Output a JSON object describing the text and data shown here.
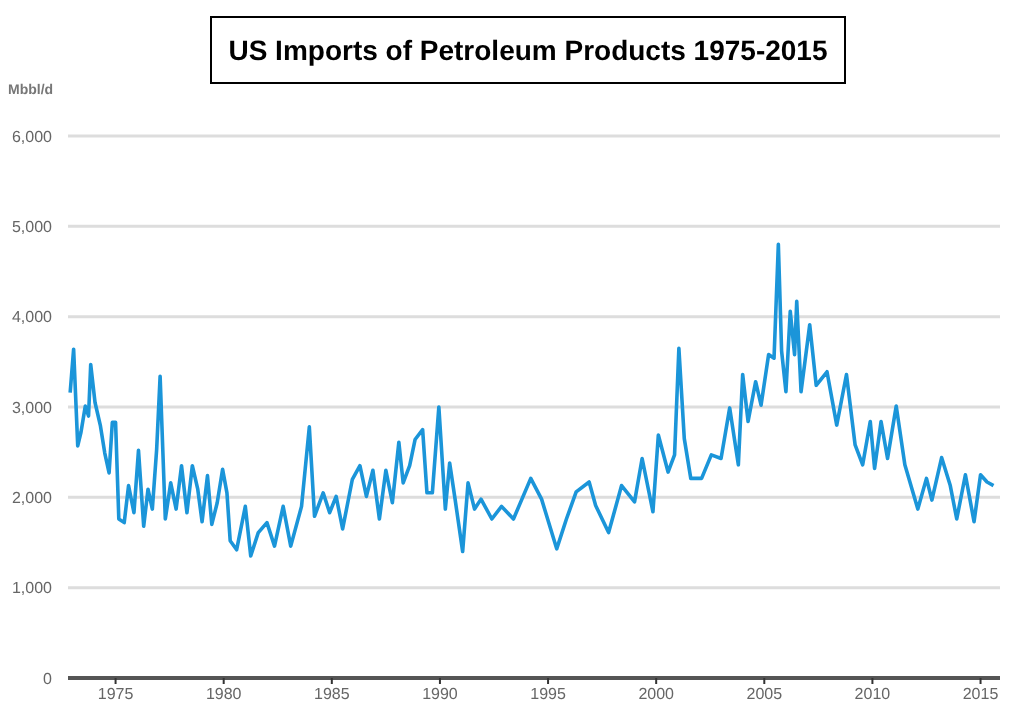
{
  "chart_data": {
    "type": "line",
    "title": "US Imports of Petroleum Products 1975-2015",
    "ylabel": "Mbbl/d",
    "xlim": [
      1972.8,
      2015.9
    ],
    "xticks": [
      1975,
      1980,
      1985,
      1990,
      1995,
      2000,
      2005,
      2010,
      2015
    ],
    "ylim": [
      0,
      6000
    ],
    "yticks": [
      {
        "value": 0,
        "label": "0"
      },
      {
        "value": 1000,
        "label": "1,000"
      },
      {
        "value": 2000,
        "label": "2,000"
      },
      {
        "value": 3000,
        "label": "3,000"
      },
      {
        "value": 4000,
        "label": "4,000"
      },
      {
        "value": 5000,
        "label": "5,000"
      },
      {
        "value": 6000,
        "label": "6,000"
      }
    ],
    "grid": "y",
    "x": [
      1972.9,
      1973.06,
      1973.25,
      1973.4,
      1973.6,
      1973.75,
      1973.85,
      1974.05,
      1974.3,
      1974.5,
      1974.7,
      1974.85,
      1975.0,
      1975.15,
      1975.4,
      1975.6,
      1975.85,
      1976.06,
      1976.3,
      1976.5,
      1976.7,
      1976.9,
      1977.06,
      1977.3,
      1977.55,
      1977.8,
      1978.05,
      1978.3,
      1978.55,
      1978.8,
      1979.0,
      1979.25,
      1979.45,
      1979.7,
      1979.95,
      1980.15,
      1980.3,
      1980.6,
      1981.0,
      1981.25,
      1981.6,
      1982.0,
      1982.35,
      1982.75,
      1983.1,
      1983.6,
      1983.96,
      1984.2,
      1984.6,
      1984.9,
      1985.2,
      1985.5,
      1985.95,
      1986.3,
      1986.6,
      1986.9,
      1987.2,
      1987.5,
      1987.8,
      1988.1,
      1988.3,
      1988.6,
      1988.85,
      1989.2,
      1989.4,
      1989.65,
      1989.95,
      1990.25,
      1990.45,
      1990.7,
      1991.05,
      1991.3,
      1991.6,
      1991.9,
      1992.4,
      1992.85,
      1993.4,
      1994.2,
      1994.7,
      1995.4,
      1995.85,
      1996.3,
      1996.9,
      1997.2,
      1997.8,
      1998.4,
      1999.0,
      1999.35,
      1999.85,
      2000.1,
      2000.55,
      2000.85,
      2001.05,
      2001.3,
      2001.6,
      2002.1,
      2002.55,
      2003.0,
      2003.4,
      2003.8,
      2004.0,
      2004.25,
      2004.6,
      2004.85,
      2005.2,
      2005.45,
      2005.65,
      2005.8,
      2006.0,
      2006.2,
      2006.4,
      2006.5,
      2006.7,
      2007.1,
      2007.4,
      2007.9,
      2008.35,
      2008.8,
      2009.2,
      2009.55,
      2009.9,
      2010.1,
      2010.4,
      2010.7,
      2011.1,
      2011.5,
      2012.1,
      2012.5,
      2012.75,
      2013.2,
      2013.6,
      2013.9,
      2014.3,
      2014.7,
      2015.0,
      2015.3,
      2015.6
    ],
    "series": [
      {
        "color": "#1b95d9",
        "values": [
          3160,
          3640,
          2570,
          2720,
          3010,
          2900,
          3470,
          3050,
          2790,
          2490,
          2270,
          2830,
          2830,
          1760,
          1720,
          2130,
          1830,
          2520,
          1680,
          2090,
          1870,
          2530,
          3340,
          1760,
          2160,
          1870,
          2350,
          1830,
          2350,
          2090,
          1730,
          2240,
          1700,
          1940,
          2310,
          2050,
          1520,
          1420,
          1900,
          1350,
          1610,
          1720,
          1460,
          1900,
          1460,
          1900,
          2780,
          1790,
          2050,
          1830,
          2010,
          1650,
          2200,
          2350,
          2010,
          2300,
          1760,
          2300,
          1940,
          2610,
          2160,
          2350,
          2640,
          2750,
          2050,
          2050,
          3000,
          1870,
          2380,
          1980,
          1400,
          2160,
          1870,
          1980,
          1760,
          1900,
          1760,
          2210,
          1980,
          1430,
          1760,
          2060,
          2170,
          1910,
          1610,
          2130,
          1950,
          2430,
          1840,
          2690,
          2280,
          2470,
          3650,
          2650,
          2210,
          2210,
          2470,
          2430,
          2990,
          2360,
          3360,
          2840,
          3280,
          3020,
          3580,
          3540,
          4800,
          3620,
          3170,
          4060,
          3580,
          4170,
          3170,
          3910,
          3240,
          3390,
          2800,
          3360,
          2580,
          2360,
          2840,
          2320,
          2840,
          2430,
          3010,
          2360,
          1870,
          2210,
          1970,
          2440,
          2130,
          1760,
          2250,
          1730,
          2250,
          2170,
          2130
        ]
      }
    ]
  }
}
